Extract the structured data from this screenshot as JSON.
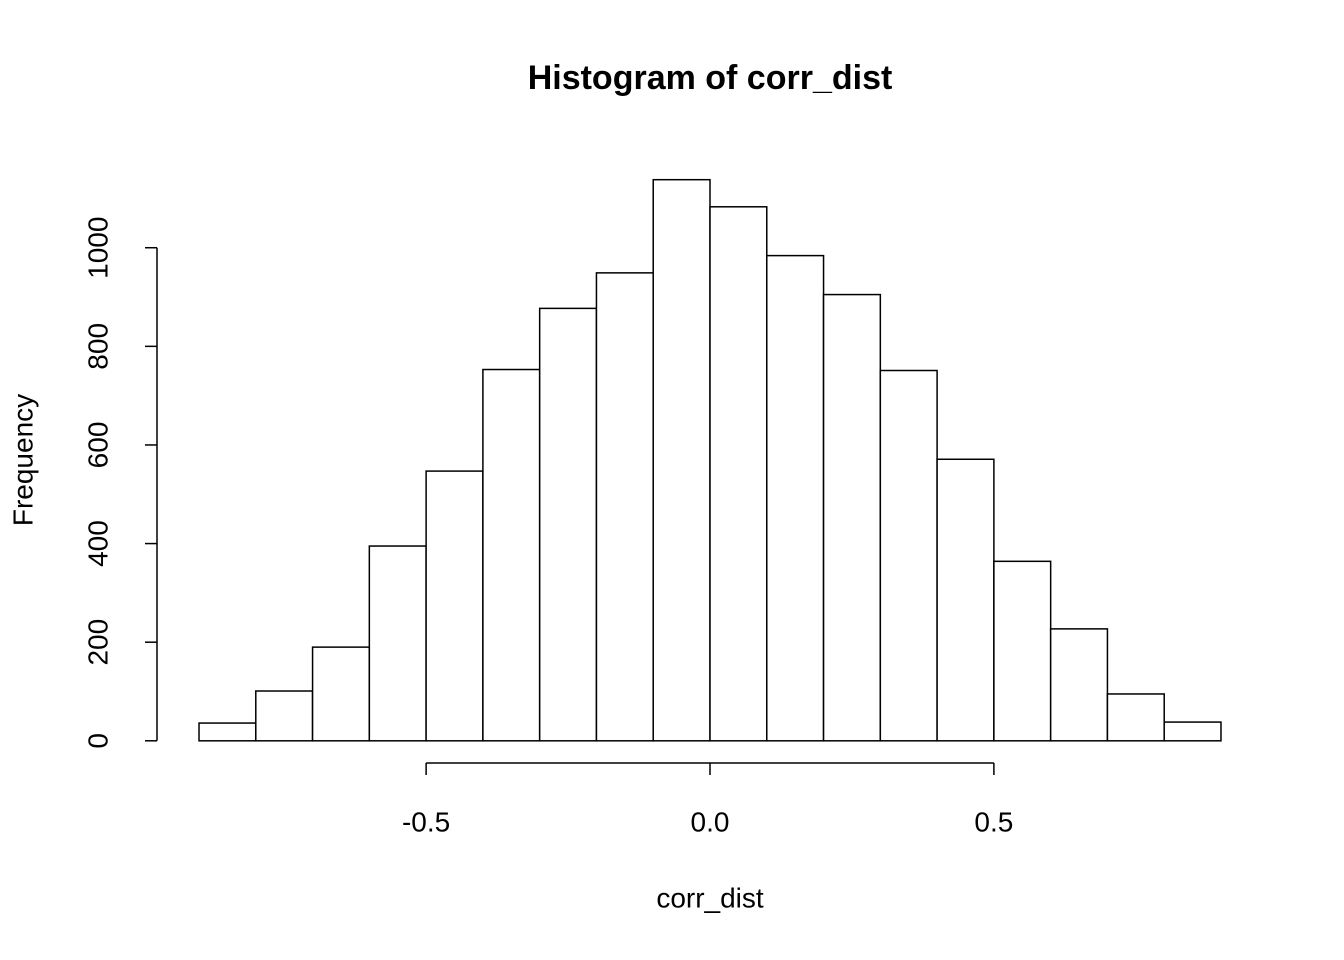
{
  "chart_data": {
    "type": "histogram",
    "title": "Histogram of corr_dist",
    "x_label": "corr_dist",
    "y_label": "Frequency",
    "bins": [
      -0.9,
      -0.8,
      -0.7,
      -0.6,
      -0.5,
      -0.4,
      -0.3,
      -0.2,
      -0.1,
      0,
      0.1,
      0.2,
      0.3,
      0.4,
      0.5,
      0.6,
      0.7,
      0.8,
      0.9
    ],
    "counts": [
      36,
      101,
      190,
      395,
      547,
      753,
      877,
      949,
      1138,
      1083,
      984,
      905,
      751,
      571,
      364,
      227,
      95,
      38
    ],
    "color": "#ffffff",
    "xlim": [
      -0.974,
      0.974
    ],
    "ylim": [
      -45,
      1184
    ],
    "xticks": [
      -0.5,
      {
        "value": 0,
        "label": "0.0"
      },
      0.5
    ],
    "yticks": [
      0,
      200,
      400,
      600,
      800,
      1000
    ]
  }
}
